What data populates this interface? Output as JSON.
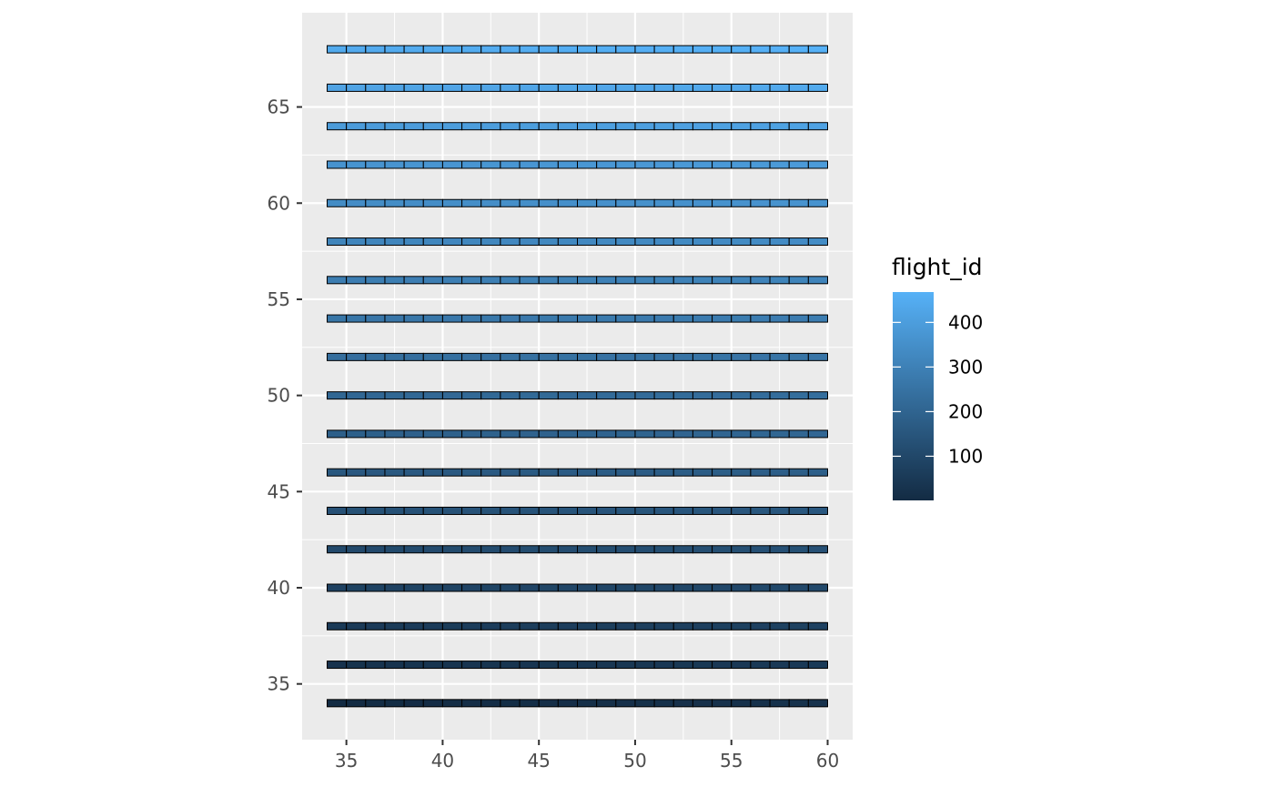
{
  "chart_data": {
    "type": "heatmap",
    "x_range": [
      34,
      60
    ],
    "y_values": [
      34,
      36,
      38,
      40,
      42,
      44,
      46,
      48,
      50,
      52,
      54,
      56,
      58,
      60,
      62,
      64,
      66,
      68
    ],
    "xlim": [
      32.7,
      61.3
    ],
    "ylim": [
      32.1,
      69.9
    ],
    "x_ticks": [
      35,
      40,
      45,
      50,
      55,
      60
    ],
    "y_ticks": [
      35,
      40,
      45,
      50,
      55,
      60,
      65
    ],
    "x_tick_labels": [
      "35",
      "40",
      "45",
      "50",
      "55",
      "60"
    ],
    "y_tick_labels": [
      "35",
      "40",
      "45",
      "50",
      "55",
      "60",
      "65"
    ],
    "fill_variable": "flight_id",
    "fill_range": [
      1,
      468
    ],
    "fill_colors": {
      "low": "#132B43",
      "high": "#56B1F7"
    },
    "tile_border": "#000000",
    "panel_background": "#EBEBEB",
    "grid": true,
    "legend": {
      "title": "flight_id",
      "breaks": [
        100,
        200,
        300,
        400
      ],
      "labels": [
        "100",
        "200",
        "300",
        "400"
      ],
      "position": "right"
    }
  }
}
